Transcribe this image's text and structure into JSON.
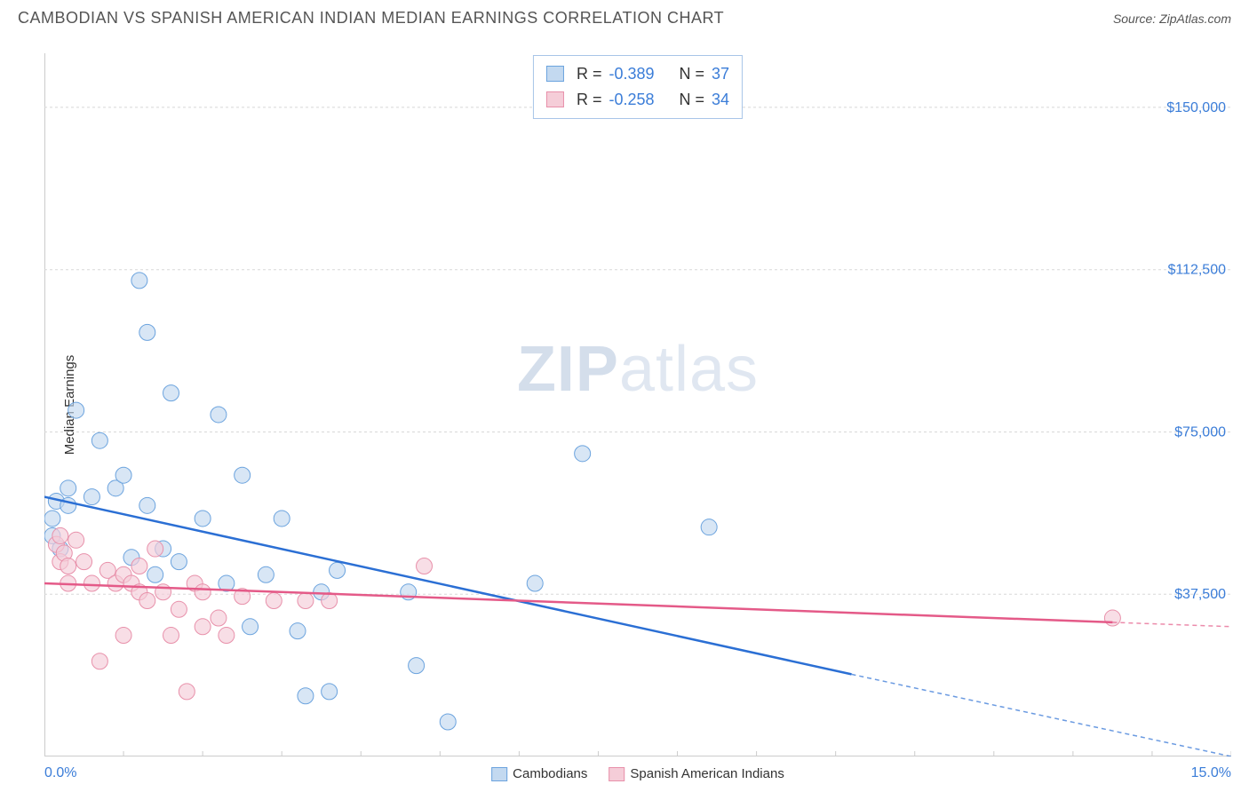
{
  "header": {
    "title": "CAMBODIAN VS SPANISH AMERICAN INDIAN MEDIAN EARNINGS CORRELATION CHART",
    "source_label": "Source: ",
    "source_name": "ZipAtlas.com"
  },
  "chart": {
    "type": "scatter",
    "ylabel": "Median Earnings",
    "background_color": "#ffffff",
    "grid_color": "#d8d8d8",
    "border_color": "#cccccc",
    "xaxis": {
      "min": 0.0,
      "max": 15.0,
      "tick_positions": [
        0,
        1,
        2,
        3,
        4,
        5,
        6,
        7,
        8,
        9,
        10,
        11,
        12,
        13,
        14,
        15
      ],
      "label_min": "0.0%",
      "label_max": "15.0%",
      "label_color": "#3b7dd8",
      "label_fontsize": 16
    },
    "yaxis": {
      "min": 0,
      "max": 162500,
      "tick_positions": [
        37500,
        75000,
        112500,
        150000
      ],
      "tick_labels": [
        "$37,500",
        "$75,000",
        "$112,500",
        "$150,000"
      ],
      "label_color": "#3b7dd8",
      "label_fontsize": 16
    },
    "watermark": {
      "text_bold": "ZIP",
      "text_light": "atlas"
    },
    "series": [
      {
        "id": "cambodians",
        "name": "Cambodians",
        "marker_fill": "#c3d9f0",
        "marker_stroke": "#6ba3de",
        "marker_radius": 9,
        "marker_opacity": 0.65,
        "trend_color": "#2b6fd4",
        "trend_width": 2.5,
        "trend_start": {
          "x": 0.0,
          "y": 60000
        },
        "trend_solid_end": {
          "x": 10.2,
          "y": 19000
        },
        "trend_dashed_end": {
          "x": 15.0,
          "y": 0
        },
        "R": "-0.389",
        "N": "37",
        "points": [
          {
            "x": 0.1,
            "y": 51000
          },
          {
            "x": 0.1,
            "y": 55000
          },
          {
            "x": 0.15,
            "y": 59000
          },
          {
            "x": 0.2,
            "y": 48000
          },
          {
            "x": 0.3,
            "y": 58000
          },
          {
            "x": 0.3,
            "y": 62000
          },
          {
            "x": 0.4,
            "y": 80000
          },
          {
            "x": 0.6,
            "y": 60000
          },
          {
            "x": 0.7,
            "y": 73000
          },
          {
            "x": 0.9,
            "y": 62000
          },
          {
            "x": 1.0,
            "y": 65000
          },
          {
            "x": 1.1,
            "y": 46000
          },
          {
            "x": 1.2,
            "y": 110000
          },
          {
            "x": 1.3,
            "y": 98000
          },
          {
            "x": 1.3,
            "y": 58000
          },
          {
            "x": 1.4,
            "y": 42000
          },
          {
            "x": 1.5,
            "y": 48000
          },
          {
            "x": 1.6,
            "y": 84000
          },
          {
            "x": 1.7,
            "y": 45000
          },
          {
            "x": 2.0,
            "y": 55000
          },
          {
            "x": 2.2,
            "y": 79000
          },
          {
            "x": 2.3,
            "y": 40000
          },
          {
            "x": 2.5,
            "y": 65000
          },
          {
            "x": 2.6,
            "y": 30000
          },
          {
            "x": 2.8,
            "y": 42000
          },
          {
            "x": 3.0,
            "y": 55000
          },
          {
            "x": 3.2,
            "y": 29000
          },
          {
            "x": 3.3,
            "y": 14000
          },
          {
            "x": 3.5,
            "y": 38000
          },
          {
            "x": 3.6,
            "y": 15000
          },
          {
            "x": 3.7,
            "y": 43000
          },
          {
            "x": 4.6,
            "y": 38000
          },
          {
            "x": 4.7,
            "y": 21000
          },
          {
            "x": 5.1,
            "y": 8000
          },
          {
            "x": 6.2,
            "y": 40000
          },
          {
            "x": 6.8,
            "y": 70000
          },
          {
            "x": 8.4,
            "y": 53000
          }
        ]
      },
      {
        "id": "spanish",
        "name": "Spanish American Indians",
        "marker_fill": "#f5cdd8",
        "marker_stroke": "#e890aa",
        "marker_radius": 9,
        "marker_opacity": 0.65,
        "trend_color": "#e45a88",
        "trend_width": 2.5,
        "trend_start": {
          "x": 0.0,
          "y": 40000
        },
        "trend_solid_end": {
          "x": 13.5,
          "y": 31000
        },
        "trend_dashed_end": {
          "x": 15.0,
          "y": 30000
        },
        "R": "-0.258",
        "N": "34",
        "points": [
          {
            "x": 0.15,
            "y": 49000
          },
          {
            "x": 0.2,
            "y": 51000
          },
          {
            "x": 0.2,
            "y": 45000
          },
          {
            "x": 0.25,
            "y": 47000
          },
          {
            "x": 0.3,
            "y": 44000
          },
          {
            "x": 0.3,
            "y": 40000
          },
          {
            "x": 0.4,
            "y": 50000
          },
          {
            "x": 0.5,
            "y": 45000
          },
          {
            "x": 0.6,
            "y": 40000
          },
          {
            "x": 0.7,
            "y": 22000
          },
          {
            "x": 0.8,
            "y": 43000
          },
          {
            "x": 0.9,
            "y": 40000
          },
          {
            "x": 1.0,
            "y": 28000
          },
          {
            "x": 1.0,
            "y": 42000
          },
          {
            "x": 1.1,
            "y": 40000
          },
          {
            "x": 1.2,
            "y": 38000
          },
          {
            "x": 1.2,
            "y": 44000
          },
          {
            "x": 1.3,
            "y": 36000
          },
          {
            "x": 1.4,
            "y": 48000
          },
          {
            "x": 1.5,
            "y": 38000
          },
          {
            "x": 1.6,
            "y": 28000
          },
          {
            "x": 1.7,
            "y": 34000
          },
          {
            "x": 1.8,
            "y": 15000
          },
          {
            "x": 1.9,
            "y": 40000
          },
          {
            "x": 2.0,
            "y": 30000
          },
          {
            "x": 2.0,
            "y": 38000
          },
          {
            "x": 2.2,
            "y": 32000
          },
          {
            "x": 2.3,
            "y": 28000
          },
          {
            "x": 2.5,
            "y": 37000
          },
          {
            "x": 2.9,
            "y": 36000
          },
          {
            "x": 3.3,
            "y": 36000
          },
          {
            "x": 3.6,
            "y": 36000
          },
          {
            "x": 4.8,
            "y": 44000
          },
          {
            "x": 13.5,
            "y": 32000
          }
        ]
      }
    ],
    "footer_legend": [
      {
        "name": "Cambodians",
        "fill": "#c3d9f0",
        "stroke": "#6ba3de"
      },
      {
        "name": "Spanish American Indians",
        "fill": "#f5cdd8",
        "stroke": "#e890aa"
      }
    ]
  }
}
